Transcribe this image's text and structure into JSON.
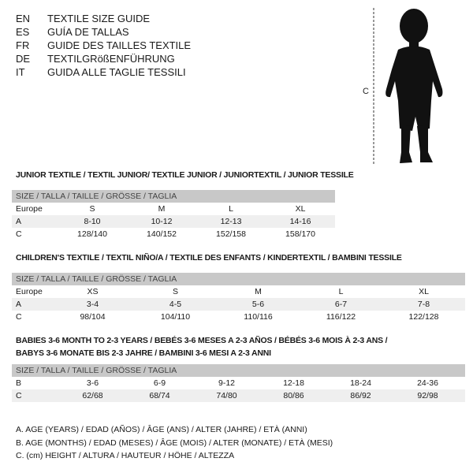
{
  "languages": [
    {
      "code": "EN",
      "name": "TEXTILE SIZE GUIDE"
    },
    {
      "code": "ES",
      "name": "GUÍA DE TALLAS"
    },
    {
      "code": "FR",
      "name": "GUIDE DES TAILLES TEXTILE"
    },
    {
      "code": "DE",
      "name": "TEXTILGRößENFÜHRUNG"
    },
    {
      "code": "IT",
      "name": "GUIDA ALLE TAGLIE TESSILI"
    }
  ],
  "figure": {
    "height_label": "C"
  },
  "size_header": "SIZE / TALLA / TAILLE / GRÖSSE / TAGLIA",
  "junior": {
    "title": "JUNIOR TEXTILE / TEXTIL JUNIOR/ TEXTILE JUNIOR / JUNIORTEXTIL / JUNIOR TESSILE",
    "rows": [
      {
        "label": "Europe",
        "values": [
          "S",
          "M",
          "L",
          "XL"
        ]
      },
      {
        "label": "A",
        "values": [
          "8-10",
          "10-12",
          "12-13",
          "14-16"
        ]
      },
      {
        "label": "C",
        "values": [
          "128/140",
          "140/152",
          "152/158",
          "158/170"
        ]
      }
    ]
  },
  "children": {
    "title": "CHILDREN'S TEXTILE / TEXTIL NIÑO/A / TEXTILE DES ENFANTS / KINDERTEXTIL / BAMBINI TESSILE",
    "rows": [
      {
        "label": "Europe",
        "values": [
          "XS",
          "S",
          "M",
          "L",
          "XL"
        ]
      },
      {
        "label": "A",
        "values": [
          "3-4",
          "4-5",
          "5-6",
          "6-7",
          "7-8"
        ]
      },
      {
        "label": "C",
        "values": [
          "98/104",
          "104/110",
          "110/116",
          "116/122",
          "122/128"
        ]
      }
    ]
  },
  "babies": {
    "title_line1": "BABIES 3-6 MONTH TO 2-3 YEARS / BEBÉS 3-6 MESES A 2-3 AÑOS / BÉBÉS 3-6 MOIS À 2-3 ANS /",
    "title_line2": "BABYS 3-6 MONATE BIS 2-3 JAHRE / BAMBINI 3-6 MESI A 2-3 ANNI",
    "rows": [
      {
        "label": "B",
        "values": [
          "3-6",
          "6-9",
          "9-12",
          "12-18",
          "18-24",
          "24-36"
        ]
      },
      {
        "label": "C",
        "values": [
          "62/68",
          "68/74",
          "74/80",
          "80/86",
          "86/92",
          "92/98"
        ]
      }
    ]
  },
  "legend": [
    "A. AGE (YEARS) / EDAD (AÑOS) / ÂGE (ANS) / ALTER (JAHRE) / ETÀ (ANNI)",
    "B. AGE (MONTHS) / EDAD (MESES) / ÂGE (MOIS) / ALTER (MONATE) / ETÀ (MESI)",
    "C. (cm) HEIGHT / ALTURA / HAUTEUR / HÖHE / ALTEZZA"
  ]
}
